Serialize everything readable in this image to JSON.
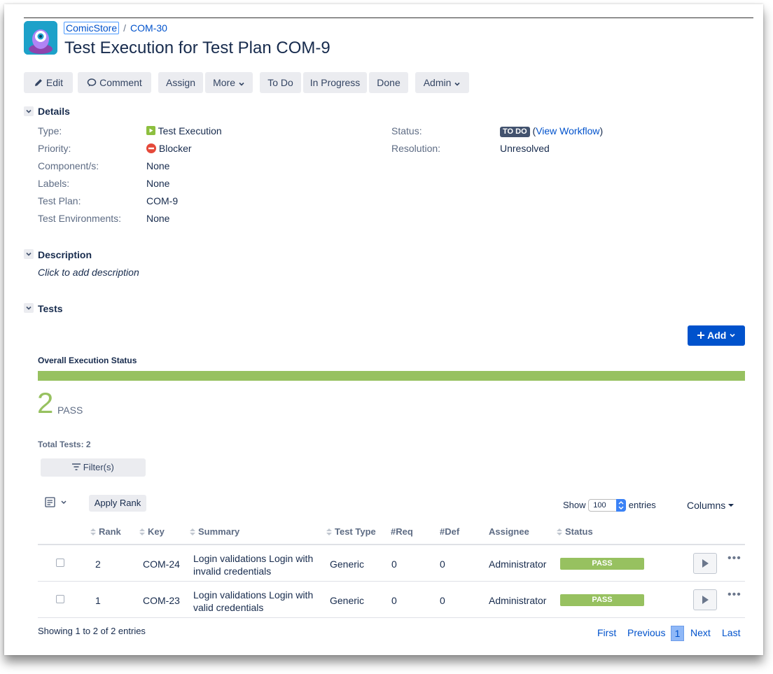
{
  "breadcrumb": {
    "project": "ComicStore",
    "separator": "/",
    "issue": "COM-30"
  },
  "page": {
    "title": "Test Execution for Test Plan COM-9"
  },
  "toolbar": {
    "edit": "Edit",
    "comment": "Comment",
    "assign": "Assign",
    "more": "More",
    "todo": "To Do",
    "in_progress": "In Progress",
    "done": "Done",
    "admin": "Admin"
  },
  "details": {
    "title": "Details",
    "type_label": "Type:",
    "type_value": "Test Execution",
    "priority_label": "Priority:",
    "priority_value": "Blocker",
    "components_label": "Component/s:",
    "components_value": "None",
    "labels_label": "Labels:",
    "labels_value": "None",
    "test_plan_label": "Test Plan:",
    "test_plan_value": "COM-9",
    "test_env_label": "Test Environments:",
    "test_env_value": "None",
    "status_label": "Status:",
    "status_value": "TO DO",
    "view_workflow": "View Workflow",
    "paren_open": "(",
    "paren_close": ")",
    "resolution_label": "Resolution:",
    "resolution_value": "Unresolved"
  },
  "description": {
    "title": "Description",
    "placeholder": "Click to add description"
  },
  "tests": {
    "title": "Tests",
    "add_label": "Add",
    "overall_status_label": "Overall Execution Status",
    "pass_count": "2",
    "pass_label": "PASS",
    "total_tests": "Total Tests: 2",
    "filter_label": "Filter(s)",
    "apply_rank": "Apply Rank",
    "show_label": "Show",
    "entries_value": "100",
    "entries_label": "entries",
    "columns_label": "Columns",
    "headers": {
      "rank": "Rank",
      "key": "Key",
      "summary": "Summary",
      "test_type": "Test Type",
      "req": "#Req",
      "def": "#Def",
      "assignee": "Assignee",
      "status": "Status"
    },
    "rows": [
      {
        "rank": "2",
        "key": "COM-24",
        "summary1": "Login validations Login with",
        "summary2": "invalid credentials",
        "test_type": "Generic",
        "req": "0",
        "def": "0",
        "assignee": "Administrator",
        "status": "PASS"
      },
      {
        "rank": "1",
        "key": "COM-23",
        "summary1": "Login validations Login with",
        "summary2": "valid credentials",
        "test_type": "Generic",
        "req": "0",
        "def": "0",
        "assignee": "Administrator",
        "status": "PASS"
      }
    ],
    "showing": "Showing 1 to 2 of 2 entries",
    "pagination": {
      "first": "First",
      "previous": "Previous",
      "current": "1",
      "next": "Next",
      "last": "Last"
    }
  },
  "colors": {
    "accent": "#0052cc",
    "pass": "#97c160",
    "todo": "#42526e"
  }
}
